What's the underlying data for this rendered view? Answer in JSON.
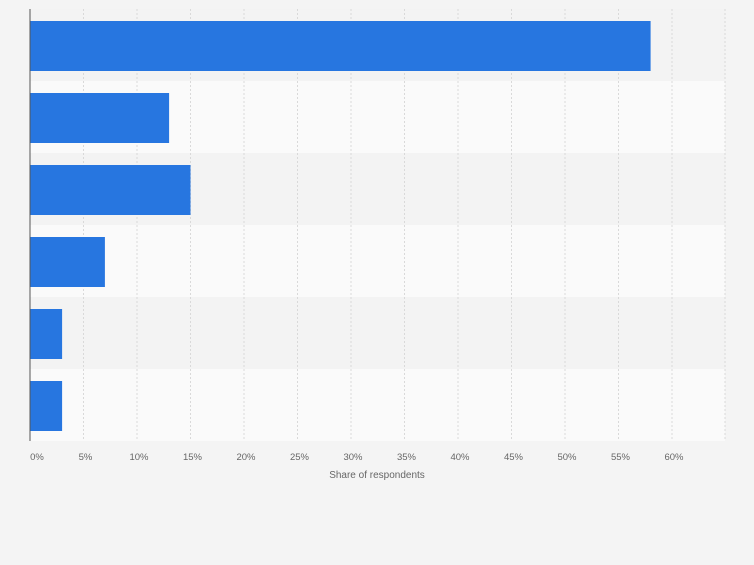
{
  "chart_data": {
    "type": "bar",
    "orientation": "horizontal",
    "categories": [
      "",
      "",
      "",
      "",
      "",
      ""
    ],
    "values": [
      58,
      13,
      15,
      7,
      3,
      3
    ],
    "title": "",
    "xlabel": "Share of respondents",
    "ylabel": "",
    "xlim": [
      0,
      65
    ],
    "ticks": [
      0,
      5,
      10,
      15,
      20,
      25,
      30,
      35,
      40,
      45,
      50,
      55,
      60
    ],
    "tick_labels": [
      "0%",
      "5%",
      "10%",
      "15%",
      "20%",
      "25%",
      "30%",
      "35%",
      "40%",
      "45%",
      "50%",
      "55%",
      "60%"
    ],
    "grid": true,
    "colors": {
      "bar": "#2776e0",
      "band_dark": "#f3f3f3",
      "band_light": "#fafafa",
      "grid": "#d9d9d9",
      "axis": "#555555",
      "tick_text": "#666666"
    }
  }
}
